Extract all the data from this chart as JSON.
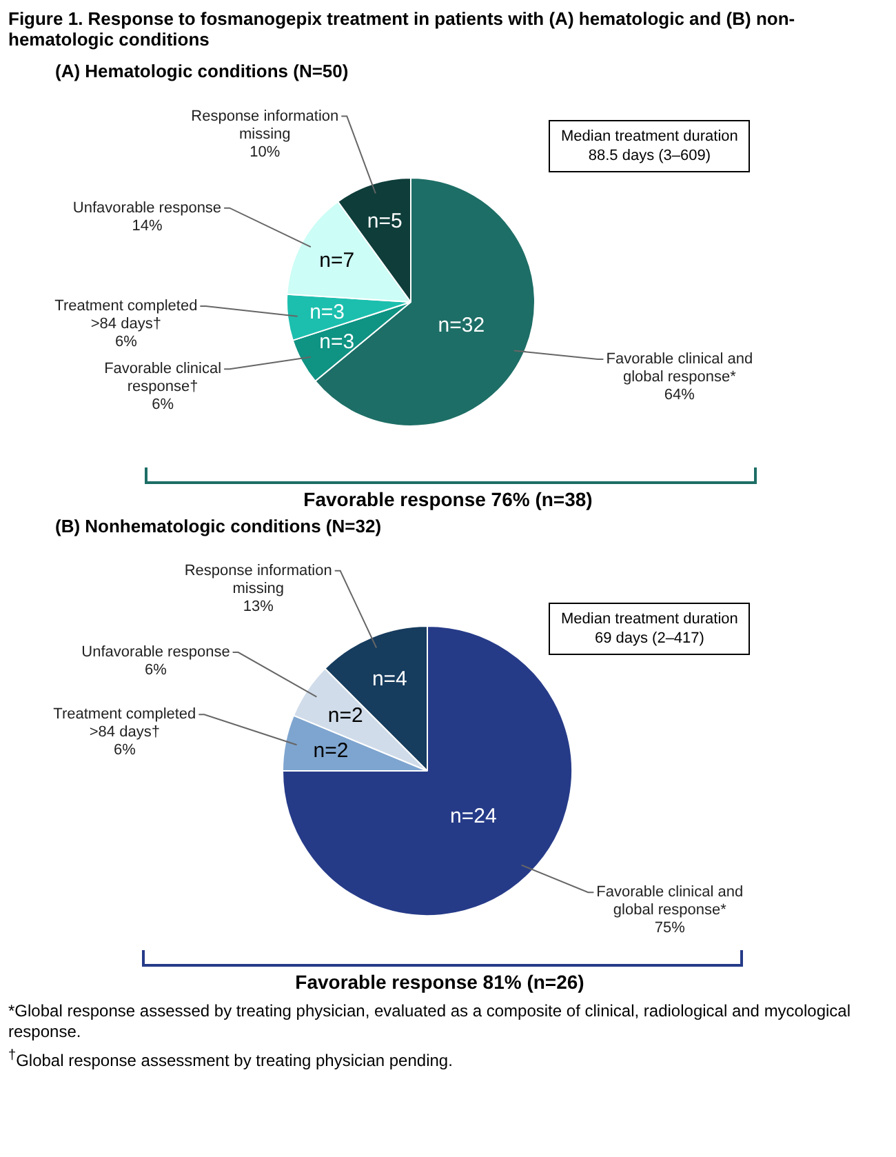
{
  "chart_data": [
    {
      "type": "pie",
      "title": "Figure 1. Response to fosmanogepix treatment in patients with (A) hematologic and (B) non-hematologic conditions",
      "subtitle": "(A) Hematologic conditions (N=50)",
      "categories": [
        "Favorable clinical and\nglobal response*\n64%",
        "Favorable clinical\nresponse†\n6%",
        "Treatment completed\n>84 days†\n6%",
        "Unfavorable response\n14%",
        "Response information\nmissing\n10%"
      ],
      "values": [
        32,
        3,
        3,
        7,
        5
      ],
      "value_labels": [
        "n=32",
        "n=3",
        "n=3",
        "n=7",
        "n=5"
      ],
      "colors": [
        "#1d6e66",
        "#0f9383",
        "#1cbfae",
        "#ccfdf6",
        "#0e3d3a"
      ],
      "annotations": [
        "Median treatment duration\n88.5 days (3–609)",
        "Favorable response 76% (n=38)"
      ]
    },
    {
      "type": "pie",
      "subtitle": "(B) Nonhematologic conditions (N=32)",
      "categories": [
        "Favorable clinical and\nglobal response*\n75%",
        "Treatment completed\n>84 days†\n6%",
        "Unfavorable response\n6%",
        "Response information\nmissing\n13%"
      ],
      "values": [
        24,
        2,
        2,
        4
      ],
      "value_labels": [
        "n=24",
        "n=2",
        "n=2",
        "n=4"
      ],
      "colors": [
        "#263b88",
        "#7ea5cf",
        "#d0dcea",
        "#163c5e"
      ],
      "annotations": [
        "Median treatment duration\n69 days (2–417)",
        "Favorable response 81% (n=26)",
        "*Global response assessed by treating physician, evaluated as a composite of clinical, radiological and mycological response.",
        "$^{†}$Global response assessment by treating physician pending."
      ]
    }
  ]
}
